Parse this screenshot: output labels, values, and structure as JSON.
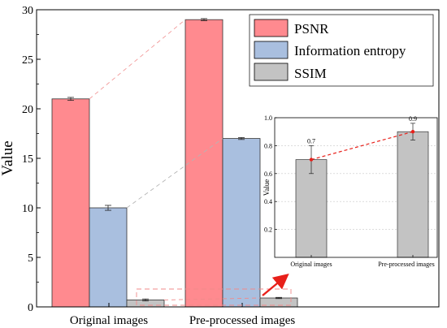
{
  "chart_data": [
    {
      "type": "bar",
      "title": "",
      "xlabel": "",
      "ylabel": "Value",
      "ylim": [
        0,
        30
      ],
      "yticks": [
        0,
        5,
        10,
        15,
        20,
        25,
        30
      ],
      "ytick_labels": [
        "0",
        "5",
        "10",
        "15",
        "20",
        "25",
        "30"
      ],
      "categories": [
        "Original images",
        "Pre-processed images"
      ],
      "legend_position": "top-right",
      "grid": false,
      "series": [
        {
          "name": "PSNR",
          "values": [
            21,
            29
          ],
          "errors": [
            0.15,
            0.1
          ],
          "color": "#ff8a8f"
        },
        {
          "name": "Information entropy",
          "values": [
            10,
            17
          ],
          "errors": [
            0.25,
            0.1
          ],
          "color": "#a9bfdf"
        },
        {
          "name": "SSIM",
          "values": [
            0.7,
            0.9
          ],
          "errors": [
            0.1,
            0.06
          ],
          "color": "#c3c3c3"
        }
      ]
    },
    {
      "type": "bar",
      "title": "",
      "xlabel": "",
      "ylabel": "Value",
      "ylim": [
        0,
        1.0
      ],
      "yticks": [
        0.2,
        0.4,
        0.6,
        0.8,
        1.0
      ],
      "ytick_labels": [
        "0.2",
        "0.4",
        "0.6",
        "0.8",
        "1.0"
      ],
      "categories": [
        "Original images",
        "Pre-processed images"
      ],
      "grid": true,
      "series": [
        {
          "name": "SSIM",
          "values": [
            0.7,
            0.9
          ],
          "errors": [
            0.1,
            0.06
          ],
          "data_labels": [
            "0.7",
            "0.9"
          ],
          "color": "#c3c3c3"
        }
      ]
    }
  ]
}
